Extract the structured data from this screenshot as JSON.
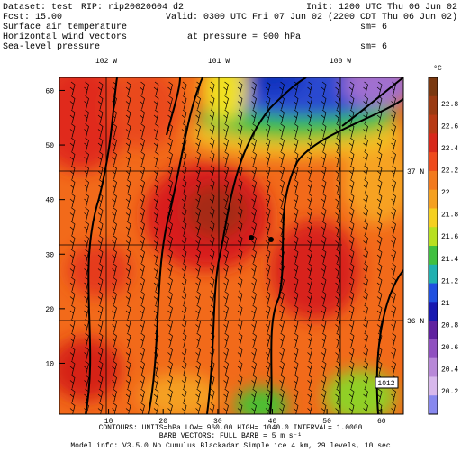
{
  "header": {
    "dataset": "Dataset: test",
    "rip": "RIP: rip20020604  d2",
    "init": "Init: 1200 UTC Thu 06 Jun 02",
    "fcst": "Fcst:     15.00",
    "valid": "Valid: 0300 UTC Fri 07 Jun 02 (2200 CDT Thu 06 Jun 02)",
    "field1": "Surface air temperature",
    "field2": "Horizontal wind vectors",
    "pressure": "at pressure =   900 hPa",
    "field3": "Sea-level pressure",
    "sm1": "sm= 6",
    "sm3": "sm= 6"
  },
  "map": {
    "lon_labels": [
      "102 W",
      "101 W",
      "100 W"
    ],
    "lat_labels": [
      "37 N",
      "36 N"
    ],
    "low_label": "1012",
    "xticks": [
      10,
      20,
      30,
      40,
      50,
      60
    ],
    "yticks": [
      10,
      20,
      30,
      40,
      50,
      60
    ]
  },
  "colorbar": {
    "unit": "°C",
    "labels": [
      "22.8",
      "22.6",
      "22.4",
      "22.2",
      "22",
      "21.8",
      "21.6",
      "21.4",
      "21.2",
      "21",
      "20.8",
      "20.6",
      "20.4",
      "20.2"
    ]
  },
  "footer": {
    "contours": "CONTOURS:  UNITS=hPa   LOW=  960.00    HIGH=  1040.0    INTERVAL=   1.0000",
    "barbs": "BARB VECTORS:  FULL BARB = 5 m s⁻¹",
    "model": "Model info: V3.5.0 No Cumulus Blackadar  Simple ice   4 km,  29 levels,   10 sec"
  }
}
